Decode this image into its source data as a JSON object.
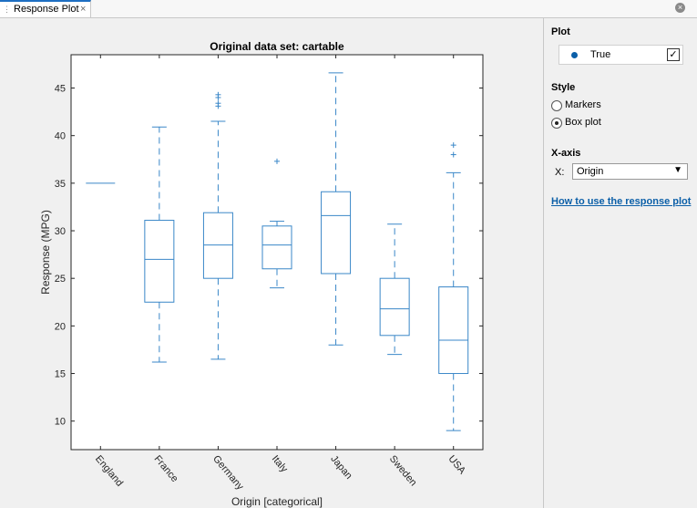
{
  "tab": {
    "title": "Response Plot",
    "close_glyph": "×",
    "grip_glyph": "⋮"
  },
  "window": {
    "close_glyph": "×"
  },
  "panel": {
    "plot": {
      "heading": "Plot",
      "item_label": "True",
      "checked": true,
      "check_glyph": "✓",
      "dot_color": "#0b5fa8"
    },
    "style": {
      "heading": "Style",
      "options": [
        "Markers",
        "Box plot"
      ],
      "selected": "Box plot"
    },
    "xaxis": {
      "heading": "X-axis",
      "label": "X:",
      "value": "Origin",
      "arrow": "▼"
    },
    "help_link": "How to use the response plot"
  },
  "chart_data": {
    "type": "box",
    "title": "Original data set: cartable",
    "xlabel": "Origin [categorical]",
    "ylabel": "Response (MPG)",
    "ylim": [
      7,
      48.5
    ],
    "yticks": [
      10,
      15,
      20,
      25,
      30,
      35,
      40,
      45
    ],
    "color": "#3a87c8",
    "categories": [
      "England",
      "France",
      "Germany",
      "Italy",
      "Japan",
      "Sweden",
      "USA"
    ],
    "boxes": [
      {
        "category": "England",
        "min": 35,
        "q1": 35,
        "median": 35,
        "q3": 35,
        "max": 35,
        "outliers": []
      },
      {
        "category": "France",
        "min": 16.2,
        "q1": 22.5,
        "median": 27,
        "q3": 31.1,
        "max": 40.9,
        "outliers": []
      },
      {
        "category": "Germany",
        "min": 16.5,
        "q1": 25,
        "median": 28.5,
        "q3": 31.9,
        "max": 41.5,
        "outliers": [
          43.1,
          43.4,
          44,
          44.3
        ]
      },
      {
        "category": "Italy",
        "min": 24,
        "q1": 26,
        "median": 28.5,
        "q3": 30.5,
        "max": 31,
        "outliers": [
          37.3
        ]
      },
      {
        "category": "Japan",
        "min": 18,
        "q1": 25.5,
        "median": 31.6,
        "q3": 34.1,
        "max": 46.6,
        "outliers": []
      },
      {
        "category": "Sweden",
        "min": 17,
        "q1": 19,
        "median": 21.8,
        "q3": 25,
        "max": 30.7,
        "outliers": []
      },
      {
        "category": "USA",
        "min": 9,
        "q1": 15,
        "median": 18.5,
        "q3": 24.1,
        "max": 36.1,
        "outliers": [
          38,
          39
        ]
      }
    ]
  }
}
